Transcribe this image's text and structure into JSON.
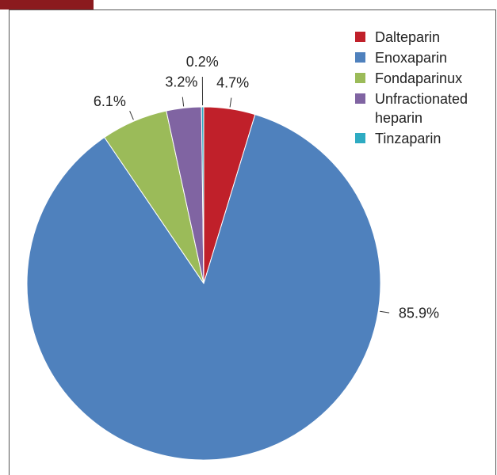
{
  "chart_data": {
    "type": "pie",
    "categories": [
      "Dalteparin",
      "Enoxaparin",
      "Fondaparinux",
      "Unfractionated heparin",
      "Tinzaparin"
    ],
    "values": [
      4.7,
      85.9,
      6.1,
      3.2,
      0.2
    ],
    "value_labels": [
      "4.7%",
      "85.9%",
      "6.1%",
      "3.2%",
      "0.2%"
    ],
    "colors": [
      "#c0202a",
      "#4f81bd",
      "#9bbb59",
      "#8064a2",
      "#2eabc2"
    ]
  }
}
